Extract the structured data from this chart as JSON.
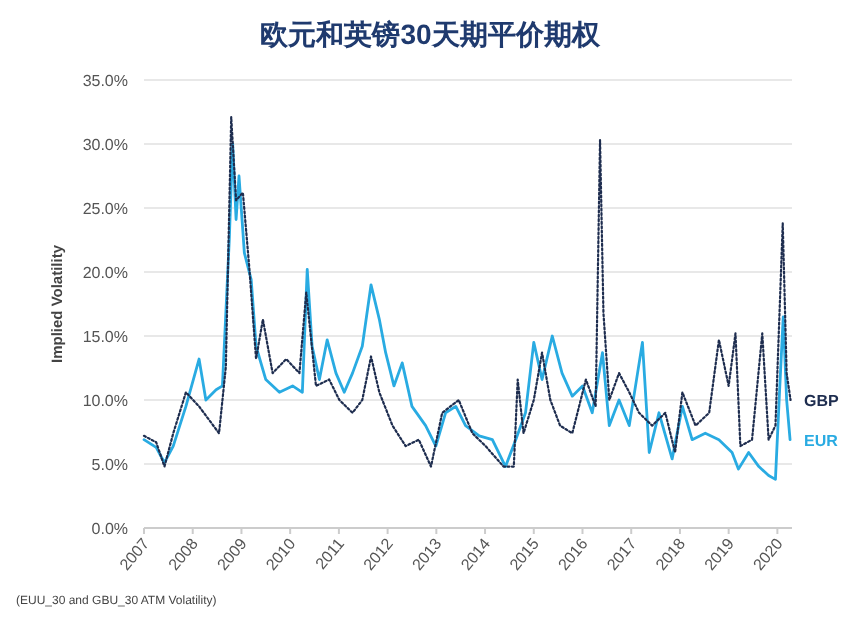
{
  "chart_data": {
    "type": "line",
    "title": "欧元和英镑30天期平价期权",
    "ylabel": "Implied Volatility",
    "annotations": [
      "(EUU_30 and GBU_30 ATM Volatility)"
    ],
    "xlim": [
      2007,
      2020.3
    ],
    "xticks": [
      2007,
      2008,
      2009,
      2010,
      2011,
      2012,
      2013,
      2014,
      2015,
      2016,
      2017,
      2018,
      2019,
      2020
    ],
    "ylim": [
      0,
      35
    ],
    "yticks": [
      {
        "value": 0,
        "label": "0.0%"
      },
      {
        "value": 5,
        "label": "5.0%"
      },
      {
        "value": 10,
        "label": "10.0%"
      },
      {
        "value": 15,
        "label": "15.0%"
      },
      {
        "value": 20,
        "label": "20.0%"
      },
      {
        "value": 25,
        "label": "25.0%"
      },
      {
        "value": 30,
        "label": "30.0%"
      },
      {
        "value": 35,
        "label": "35.0%"
      }
    ],
    "grid": "y",
    "series": [
      {
        "name": "GBP",
        "color": "#1e2d4f",
        "line_style": "dotted",
        "x": [
          2007.0,
          2007.25,
          2007.42,
          2007.6,
          2007.86,
          2008.13,
          2008.54,
          2008.68,
          2008.79,
          2008.89,
          2009.03,
          2009.16,
          2009.3,
          2009.44,
          2009.64,
          2009.92,
          2010.19,
          2010.33,
          2010.53,
          2010.8,
          2011.01,
          2011.28,
          2011.48,
          2011.66,
          2011.83,
          2012.1,
          2012.37,
          2012.64,
          2012.89,
          2013.12,
          2013.46,
          2013.74,
          2014.01,
          2014.38,
          2014.59,
          2014.67,
          2014.79,
          2015.0,
          2015.17,
          2015.34,
          2015.54,
          2015.79,
          2016.07,
          2016.27,
          2016.36,
          2016.43,
          2016.55,
          2016.75,
          2016.96,
          2017.16,
          2017.43,
          2017.7,
          2017.9,
          2018.05,
          2018.32,
          2018.6,
          2018.8,
          2019.0,
          2019.14,
          2019.24,
          2019.48,
          2019.69,
          2019.82,
          2019.96,
          2020.11,
          2020.19,
          2020.27
        ],
        "values": [
          7.2,
          6.7,
          4.8,
          7.4,
          10.6,
          9.5,
          7.4,
          12.6,
          32.1,
          25.6,
          26.2,
          20.4,
          13.2,
          16.3,
          12.1,
          13.2,
          12.1,
          18.4,
          11.1,
          11.6,
          10.0,
          9.0,
          10.0,
          13.4,
          10.6,
          8.0,
          6.4,
          6.9,
          4.8,
          9.0,
          10.0,
          7.4,
          6.4,
          4.8,
          4.8,
          11.6,
          7.4,
          10.0,
          13.7,
          10.0,
          8.0,
          7.4,
          11.6,
          9.5,
          30.3,
          16.8,
          10.0,
          12.1,
          10.6,
          9.0,
          8.0,
          9.0,
          5.9,
          10.6,
          8.0,
          9.0,
          14.7,
          11.1,
          15.2,
          6.4,
          6.9,
          15.2,
          6.9,
          8.0,
          23.8,
          12.1,
          10.0
        ]
      },
      {
        "name": "EUR",
        "color": "#29abe2",
        "line_style": "solid",
        "x": [
          2007.0,
          2007.25,
          2007.42,
          2007.6,
          2007.86,
          2008.13,
          2008.27,
          2008.48,
          2008.61,
          2008.75,
          2008.82,
          2008.89,
          2008.95,
          2009.06,
          2009.2,
          2009.3,
          2009.5,
          2009.78,
          2010.05,
          2010.25,
          2010.35,
          2010.45,
          2010.6,
          2010.76,
          2010.94,
          2011.11,
          2011.28,
          2011.48,
          2011.66,
          2011.83,
          2011.96,
          2012.13,
          2012.3,
          2012.5,
          2012.78,
          2012.99,
          2013.19,
          2013.4,
          2013.6,
          2013.88,
          2014.15,
          2014.42,
          2014.63,
          2014.83,
          2015.0,
          2015.17,
          2015.38,
          2015.58,
          2015.79,
          2016.0,
          2016.2,
          2016.41,
          2016.55,
          2016.75,
          2016.96,
          2017.23,
          2017.37,
          2017.57,
          2017.84,
          2018.05,
          2018.25,
          2018.52,
          2018.8,
          2019.07,
          2019.2,
          2019.41,
          2019.62,
          2019.82,
          2019.96,
          2020.05,
          2020.12,
          2020.19,
          2020.26
        ],
        "values": [
          6.9,
          6.3,
          5.1,
          6.4,
          9.5,
          13.2,
          10.0,
          10.8,
          11.1,
          22.5,
          30.0,
          24.1,
          27.5,
          21.5,
          19.4,
          14.2,
          11.6,
          10.6,
          11.1,
          10.6,
          20.2,
          14.2,
          11.6,
          14.7,
          12.1,
          10.6,
          12.1,
          14.2,
          19.0,
          16.3,
          13.7,
          11.1,
          12.9,
          9.5,
          8.0,
          6.4,
          9.0,
          9.5,
          8.0,
          7.2,
          6.9,
          4.8,
          6.9,
          9.0,
          14.5,
          11.6,
          15.0,
          12.1,
          10.3,
          11.1,
          9.0,
          13.7,
          8.0,
          10.0,
          8.0,
          14.5,
          5.9,
          9.0,
          5.4,
          9.5,
          6.9,
          7.4,
          6.9,
          5.9,
          4.6,
          5.9,
          4.8,
          4.1,
          3.8,
          11.1,
          16.5,
          10.0,
          6.9
        ]
      }
    ]
  }
}
